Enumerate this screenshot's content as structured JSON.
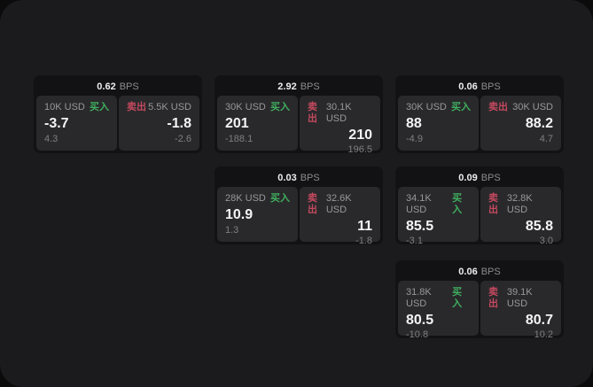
{
  "labels": {
    "bps": "BPS",
    "buy": "买入",
    "sell": "卖出"
  },
  "colors": {
    "background": "#0b0b0c",
    "screen": "#1b1b1d",
    "card": "#121214",
    "panel": "#29292b",
    "buy_green": "#3fae5e",
    "sell_red": "#c4495f",
    "value_white": "#f4f4f5",
    "label_gray": "#98989c"
  },
  "cards": [
    {
      "bps": "0.62",
      "buy": {
        "size": "10K USD",
        "value": "-3.7",
        "sub": "4.3"
      },
      "sell": {
        "size": "5.5K USD",
        "value": "-1.8",
        "sub": "-2.6"
      }
    },
    {
      "bps": "2.92",
      "buy": {
        "size": "30K USD",
        "value": "201",
        "sub": "-188.1"
      },
      "sell": {
        "size": "30.1K USD",
        "value": "210",
        "sub": "196.5"
      }
    },
    {
      "bps": "0.06",
      "buy": {
        "size": "30K USD",
        "value": "88",
        "sub": "-4.9"
      },
      "sell": {
        "size": "30K USD",
        "value": "88.2",
        "sub": "4.7"
      }
    },
    {
      "bps": "0.03",
      "buy": {
        "size": "28K USD",
        "value": "10.9",
        "sub": "1.3"
      },
      "sell": {
        "size": "32.6K USD",
        "value": "11",
        "sub": "-1.8"
      }
    },
    {
      "bps": "0.09",
      "buy": {
        "size": "34.1K USD",
        "value": "85.5",
        "sub": "-3.1"
      },
      "sell": {
        "size": "32.8K USD",
        "value": "85.8",
        "sub": "3.0"
      }
    },
    {
      "bps": "0.06",
      "buy": {
        "size": "31.8K USD",
        "value": "80.5",
        "sub": "-10.8"
      },
      "sell": {
        "size": "39.1K USD",
        "value": "80.7",
        "sub": "10.2"
      }
    }
  ]
}
